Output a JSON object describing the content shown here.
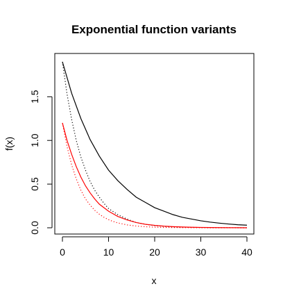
{
  "chart_data": {
    "type": "line",
    "title": "Exponential function variants",
    "xlabel": "x",
    "ylabel": "f(x)",
    "xlim": [
      0,
      40
    ],
    "ylim": [
      0,
      1.9
    ],
    "xticks": [
      0,
      10,
      20,
      30,
      40
    ],
    "yticks": [
      0.0,
      0.5,
      1.0,
      1.5
    ],
    "xtick_labels": [
      "0",
      "10",
      "20",
      "30",
      "40"
    ],
    "ytick_labels": [
      "0.0",
      "0.5",
      "1.0",
      "1.5"
    ],
    "grid": false,
    "series": [
      {
        "color": "#000000",
        "line_style": "solid",
        "x": [
          0,
          2,
          4,
          6,
          8,
          10,
          12,
          14,
          16,
          18,
          20,
          22,
          24,
          26,
          28,
          30,
          32,
          34,
          36,
          38,
          40
        ],
        "y": [
          1.9,
          1.54,
          1.25,
          1.01,
          0.82,
          0.66,
          0.54,
          0.44,
          0.35,
          0.29,
          0.23,
          0.19,
          0.15,
          0.12,
          0.1,
          0.08,
          0.065,
          0.053,
          0.043,
          0.035,
          0.03
        ]
      },
      {
        "color": "#000000",
        "line_style": "dotted",
        "x": [
          0,
          1,
          2,
          3,
          4,
          5,
          6,
          7,
          8,
          9,
          10,
          12,
          14,
          16,
          18,
          20,
          22,
          24,
          26,
          28,
          30,
          32,
          34,
          36,
          38,
          40
        ],
        "y": [
          1.9,
          1.53,
          1.24,
          1.0,
          0.81,
          0.66,
          0.53,
          0.43,
          0.35,
          0.28,
          0.22,
          0.15,
          0.1,
          0.06,
          0.04,
          0.025,
          0.016,
          0.01,
          0.007,
          0.005,
          0.003,
          0.002,
          0.001,
          0.001,
          0.0,
          0.0
        ]
      },
      {
        "color": "#ff0000",
        "line_style": "solid",
        "x": [
          0,
          1,
          2,
          3,
          4,
          5,
          6,
          7,
          8,
          10,
          12,
          14,
          16,
          18,
          20,
          22,
          24,
          26,
          28,
          30,
          32,
          34,
          36,
          38,
          40
        ],
        "y": [
          1.2,
          1.0,
          0.84,
          0.7,
          0.58,
          0.48,
          0.4,
          0.33,
          0.27,
          0.19,
          0.13,
          0.09,
          0.06,
          0.04,
          0.028,
          0.019,
          0.013,
          0.009,
          0.006,
          0.004,
          0.003,
          0.002,
          0.001,
          0.001,
          0.0
        ]
      },
      {
        "color": "#ff0000",
        "line_style": "dotted",
        "x": [
          0,
          1,
          2,
          3,
          4,
          5,
          6,
          7,
          8,
          9,
          10,
          11,
          12,
          14,
          16,
          18,
          20,
          22,
          24,
          26,
          28,
          30,
          32,
          34,
          36,
          38,
          40
        ],
        "y": [
          1.2,
          0.93,
          0.72,
          0.56,
          0.43,
          0.33,
          0.26,
          0.2,
          0.155,
          0.12,
          0.093,
          0.072,
          0.056,
          0.033,
          0.02,
          0.012,
          0.007,
          0.004,
          0.003,
          0.002,
          0.001,
          0.001,
          0.0,
          0.0,
          0.0,
          0.0,
          0.0
        ]
      }
    ]
  }
}
